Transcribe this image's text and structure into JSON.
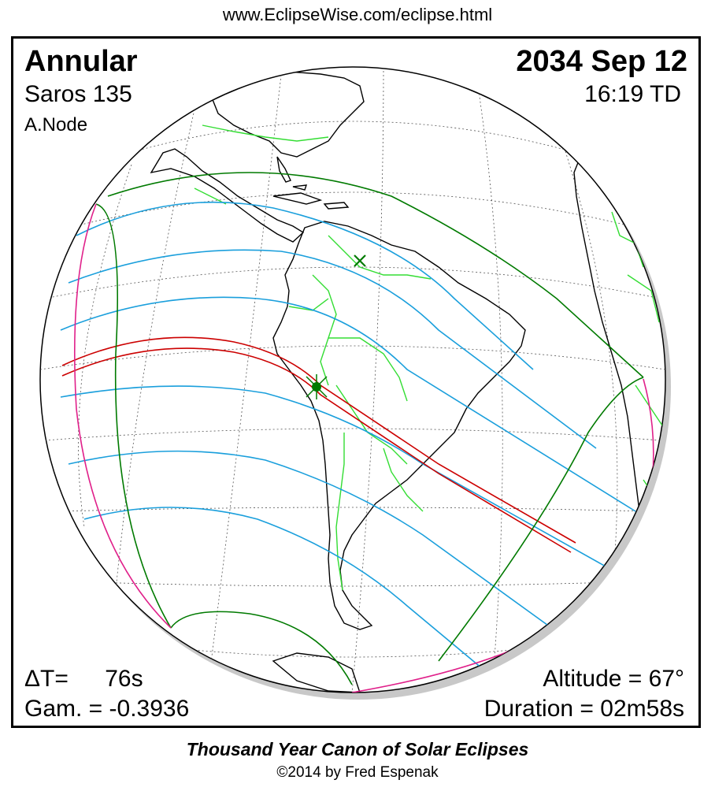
{
  "header": {
    "url": "www.EclipseWise.com/eclipse.html"
  },
  "info": {
    "type": "Annular",
    "saros": "Saros 135",
    "node": "A.Node",
    "date": "2034 Sep 12",
    "time": "16:19 TD",
    "delta_t_label": "ΔT=",
    "delta_t_value": "76s",
    "gamma": "Gam. = -0.3936",
    "altitude": "Altitude = 67°",
    "duration": "Duration = 02m58s"
  },
  "footer": {
    "title": "Thousand Year Canon of Solar Eclipses",
    "copyright": "©2014 by Fred Espenak"
  },
  "map_style": {
    "ocean": "#ffffff",
    "coastline": "#000000",
    "borders": "#33dd33",
    "graticule": "#555555",
    "penumbral_limits": "#007a00",
    "rise_set_curves": "#e0208a",
    "magnitude_lines": "#1a9fdc",
    "central_path": "#cc0000",
    "shadow": "#c8c8c8"
  }
}
